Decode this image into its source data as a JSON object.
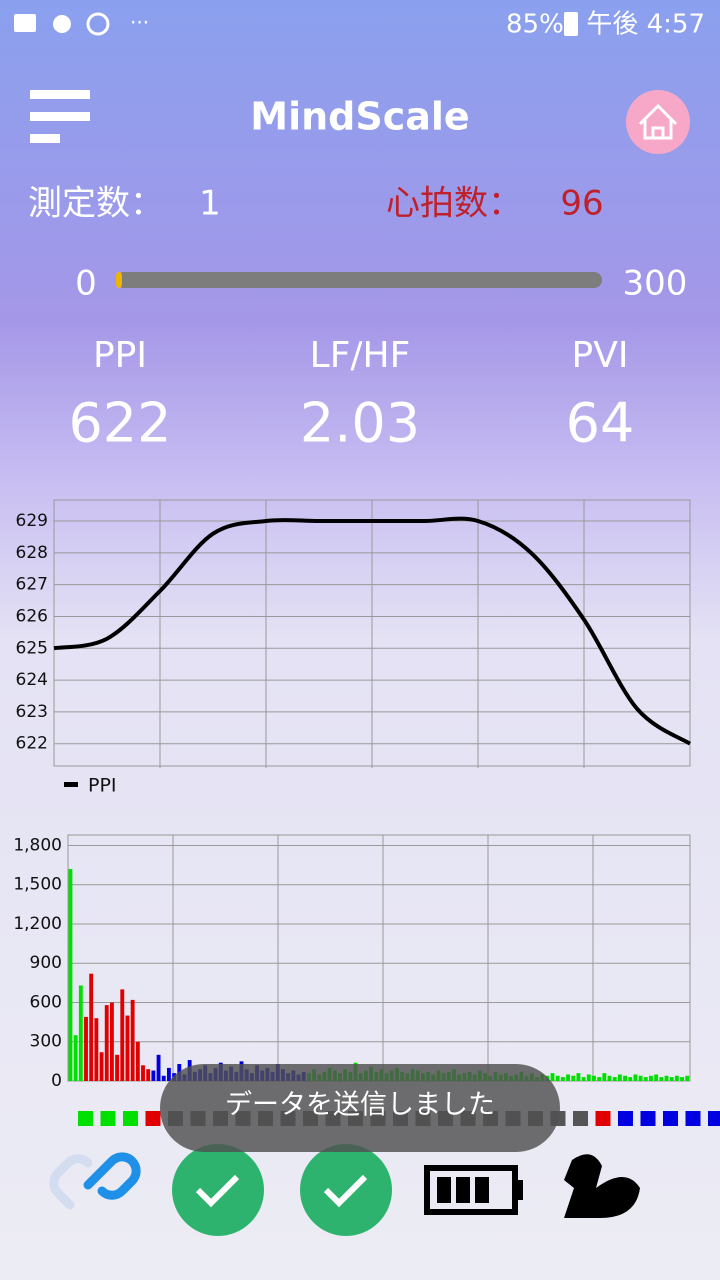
{
  "status_bar": {
    "battery": "85%",
    "time": "午後 4:57"
  },
  "header": {
    "title": "MindScale"
  },
  "counts": {
    "measurements": {
      "label": "測定数：",
      "value": "1"
    },
    "heart_rate": {
      "label": "心拍数：",
      "value": "96"
    }
  },
  "progress": {
    "min_label": "0",
    "max_label": "300",
    "min": 0,
    "max": 300,
    "value": 1
  },
  "metrics": [
    {
      "label": "PPI",
      "value": "622"
    },
    {
      "label": "LF/HF",
      "value": "2.03"
    },
    {
      "label": "PVI",
      "value": "64"
    }
  ],
  "toast": "データを送信しました",
  "chart_data": [
    {
      "type": "line",
      "x": [
        0,
        0.5,
        1,
        1.5,
        2,
        2.5,
        3,
        3.5,
        4,
        4.5,
        5,
        5.5,
        6
      ],
      "xlim": [
        0,
        6
      ],
      "series": [
        {
          "name": "PPI",
          "color": "#000000",
          "values": [
            625,
            625.3,
            626.8,
            628.6,
            629,
            629,
            629,
            629,
            629,
            628,
            625.9,
            623.1,
            622
          ]
        }
      ],
      "ylim": [
        621.3,
        629.66
      ],
      "yticks": [
        622,
        623,
        624,
        625,
        626,
        627,
        628,
        629
      ],
      "grid": true
    },
    {
      "type": "bar",
      "ylim": [
        0,
        1880
      ],
      "yticks": [
        0,
        300,
        600,
        900,
        {
          "value": 1200,
          "label": "1,200"
        },
        {
          "value": 1500,
          "label": "1,500"
        },
        {
          "value": 1800,
          "label": "1,800"
        }
      ],
      "grid": true,
      "series": [
        {
          "color": "#00e000",
          "values": [
            1620,
            350,
            730
          ]
        },
        {
          "color": "#e00000",
          "values": [
            490,
            820,
            480,
            220,
            580,
            600,
            200,
            700,
            500,
            620,
            300,
            120,
            90
          ]
        },
        {
          "color": "#0000e0",
          "values": [
            80,
            200,
            40,
            100,
            60,
            130,
            50,
            160,
            70,
            90,
            120,
            60,
            100,
            140,
            80,
            110,
            70,
            150,
            90,
            60,
            120,
            80,
            100,
            70,
            130,
            90,
            60,
            80,
            50,
            70
          ]
        },
        {
          "color": "#00e000",
          "values": [
            60,
            90,
            50,
            70,
            100,
            80,
            60,
            90,
            70,
            140,
            60,
            80,
            110,
            70,
            90,
            60,
            80,
            100,
            70,
            60,
            90,
            80,
            60,
            70,
            50,
            80,
            60,
            70,
            90,
            50,
            60,
            70,
            50,
            80,
            60,
            40,
            70,
            50,
            60,
            40,
            50,
            70,
            40,
            60,
            30,
            50,
            40,
            60,
            40,
            30,
            50,
            40,
            60,
            30,
            50,
            40,
            30,
            60,
            40,
            30,
            50,
            40,
            30,
            50,
            40,
            30,
            40,
            50,
            30,
            40,
            30,
            40,
            30,
            40
          ]
        }
      ]
    }
  ]
}
